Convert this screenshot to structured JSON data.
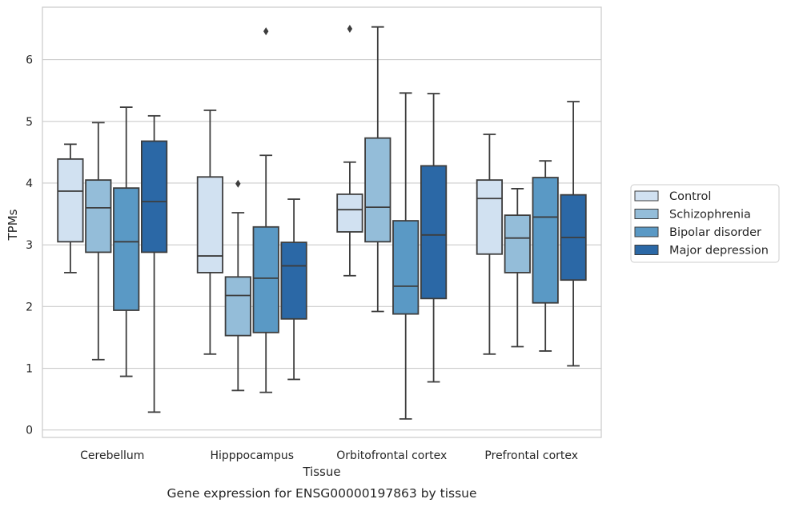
{
  "chart_data": {
    "type": "box",
    "title": "",
    "caption": "Gene expression for ENSG00000197863 by tissue",
    "xlabel": "Tissue",
    "ylabel": "TPMs",
    "ylim": [
      -0.12,
      6.85
    ],
    "yticks": [
      0,
      1,
      2,
      3,
      4,
      5,
      6
    ],
    "grid": "horizontal",
    "legend_position": "right",
    "categories": [
      "Cerebellum",
      "Hipppocampus",
      "Orbitofrontal cortex",
      "Prefrontal cortex"
    ],
    "series": [
      {
        "name": "Control",
        "color": "#d1e1f1",
        "boxes": [
          {
            "whisker_low": 2.55,
            "q1": 3.05,
            "median": 3.87,
            "q3": 4.39,
            "whisker_high": 4.63,
            "outliers": []
          },
          {
            "whisker_low": 1.23,
            "q1": 2.55,
            "median": 2.82,
            "q3": 4.1,
            "whisker_high": 5.18,
            "outliers": []
          },
          {
            "whisker_low": 2.5,
            "q1": 3.21,
            "median": 3.57,
            "q3": 3.82,
            "whisker_high": 4.34,
            "outliers": [
              6.5
            ]
          },
          {
            "whisker_low": 1.23,
            "q1": 2.85,
            "median": 3.75,
            "q3": 4.05,
            "whisker_high": 4.79,
            "outliers": []
          }
        ]
      },
      {
        "name": "Schizophrenia",
        "color": "#94bdd9",
        "boxes": [
          {
            "whisker_low": 1.14,
            "q1": 2.88,
            "median": 3.6,
            "q3": 4.05,
            "whisker_high": 4.98,
            "outliers": []
          },
          {
            "whisker_low": 0.64,
            "q1": 1.53,
            "median": 2.18,
            "q3": 2.48,
            "whisker_high": 3.52,
            "outliers": [
              3.99
            ]
          },
          {
            "whisker_low": 1.92,
            "q1": 3.05,
            "median": 3.61,
            "q3": 4.73,
            "whisker_high": 6.53,
            "outliers": []
          },
          {
            "whisker_low": 1.35,
            "q1": 2.55,
            "median": 3.11,
            "q3": 3.48,
            "whisker_high": 3.91,
            "outliers": []
          }
        ]
      },
      {
        "name": "Bipolar disorder",
        "color": "#5a99c5",
        "boxes": [
          {
            "whisker_low": 0.87,
            "q1": 1.94,
            "median": 3.05,
            "q3": 3.92,
            "whisker_high": 5.23,
            "outliers": []
          },
          {
            "whisker_low": 0.61,
            "q1": 1.58,
            "median": 2.46,
            "q3": 3.29,
            "whisker_high": 4.45,
            "outliers": [
              6.46
            ]
          },
          {
            "whisker_low": 0.18,
            "q1": 1.88,
            "median": 2.33,
            "q3": 3.39,
            "whisker_high": 5.46,
            "outliers": []
          },
          {
            "whisker_low": 1.28,
            "q1": 2.06,
            "median": 3.45,
            "q3": 4.09,
            "whisker_high": 4.36,
            "outliers": []
          }
        ]
      },
      {
        "name": "Major depression",
        "color": "#2b68a6",
        "boxes": [
          {
            "whisker_low": 0.29,
            "q1": 2.88,
            "median": 3.7,
            "q3": 4.68,
            "whisker_high": 5.09,
            "outliers": []
          },
          {
            "whisker_low": 0.82,
            "q1": 1.8,
            "median": 2.66,
            "q3": 3.04,
            "whisker_high": 3.74,
            "outliers": []
          },
          {
            "whisker_low": 0.78,
            "q1": 2.13,
            "median": 3.16,
            "q3": 4.28,
            "whisker_high": 5.45,
            "outliers": []
          },
          {
            "whisker_low": 1.04,
            "q1": 2.43,
            "median": 3.12,
            "q3": 3.81,
            "whisker_high": 5.32,
            "outliers": []
          }
        ]
      }
    ]
  }
}
